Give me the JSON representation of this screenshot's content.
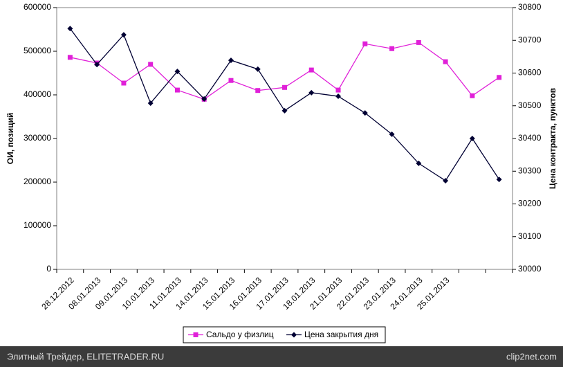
{
  "chart_data": {
    "type": "line",
    "categories": [
      "28.12.2012",
      "08.01.2013",
      "09.01.2013",
      "10.01.2013",
      "11.01.2013",
      "14.01.2013",
      "15.01.2013",
      "16.01.2013",
      "17.01.2013",
      "18.01.2013",
      "21.01.2013",
      "22.01.2013",
      "23.01.2013",
      "24.01.2013",
      "25.01.2013",
      null,
      null
    ],
    "series": [
      {
        "name": "Сальдо у физлиц",
        "color": "#e020d8",
        "marker": "square",
        "values": [
          486000,
          473000,
          427000,
          470000,
          411000,
          390000,
          433000,
          410000,
          417000,
          457000,
          411000,
          517000,
          506000,
          520000,
          476000,
          398000,
          440000
        ]
      },
      {
        "name": "Цена закрытия дня",
        "color": "#000033",
        "marker": "diamond",
        "axis": "y2",
        "values": [
          30736,
          30626,
          30717,
          30508,
          30605,
          30521,
          30639,
          30612,
          30485,
          30540,
          30529,
          30478,
          30413,
          30324,
          30271,
          30400,
          30275
        ]
      }
    ],
    "ylabel": "ОИ, позиций",
    "y2label": "Цена контракта, пунктов",
    "ylim": [
      0,
      600000
    ],
    "yticks": [
      0,
      100000,
      200000,
      300000,
      400000,
      500000,
      600000
    ],
    "y2lim": [
      30000,
      30800
    ],
    "y2ticks": [
      30000,
      30100,
      30200,
      30300,
      30400,
      30500,
      30600,
      30700,
      30800
    ],
    "legend": "bottom"
  },
  "footer": {
    "left": "Элитный Трейдер, ELITETRADER.RU",
    "right": "clip2net.com"
  }
}
